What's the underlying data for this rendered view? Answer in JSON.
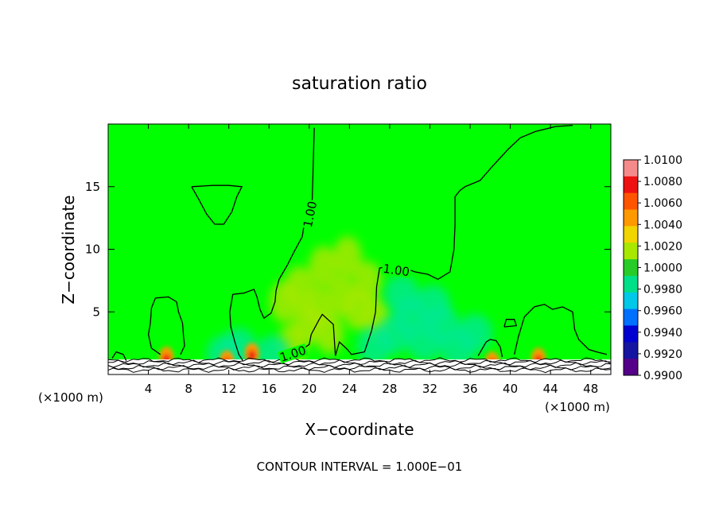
{
  "chart_data": {
    "type": "heatmap",
    "title": "saturation ratio",
    "xlabel": "X−coordinate",
    "ylabel": "Z−coordinate",
    "x_unit_left": "(×1000 m)",
    "x_unit_right": "(×1000 m)",
    "footer": "CONTOUR INTERVAL = 1.000E−01",
    "xlim": [
      0,
      50
    ],
    "ylim": [
      0,
      20
    ],
    "x_ticks": [
      4,
      8,
      12,
      16,
      20,
      24,
      28,
      32,
      36,
      40,
      44,
      48
    ],
    "y_ticks": [
      5,
      10,
      15
    ],
    "contour_labels": [
      "1.00",
      "1.00",
      "1.00"
    ],
    "colorbar": {
      "labels": [
        "1.0100",
        "1.0080",
        "1.0060",
        "1.0040",
        "1.0020",
        "1.0000",
        "0.9980",
        "0.9960",
        "0.9940",
        "0.9920",
        "0.9900"
      ],
      "colors": [
        "#f58a8a",
        "#ee1111",
        "#ff5500",
        "#ff9900",
        "#f2d400",
        "#a8e800",
        "#28cc28",
        "#00e088",
        "#00c8e8",
        "#0070ff",
        "#0000d0",
        "#1414a0",
        "#550088"
      ]
    },
    "background_color": "#00ff00",
    "warm_cells": [
      [
        18.3,
        2.4
      ],
      [
        19.8,
        4.0
      ],
      [
        20.8,
        5.4
      ],
      [
        22.0,
        3.3
      ],
      [
        23.2,
        6.3
      ],
      [
        24.8,
        5.2
      ],
      [
        25.8,
        7.4
      ],
      [
        26.6,
        4.5
      ],
      [
        21.4,
        8.6
      ],
      [
        17.5,
        5.8
      ],
      [
        19.0,
        7.0
      ],
      [
        23.8,
        9.4
      ]
    ],
    "cool_cells": [
      [
        28.5,
        3.2
      ],
      [
        30.0,
        4.6
      ],
      [
        31.5,
        2.6
      ],
      [
        33.2,
        4.0
      ],
      [
        34.8,
        2.1
      ],
      [
        36.5,
        3.3
      ],
      [
        29.2,
        6.4
      ],
      [
        32.3,
        5.6
      ],
      [
        26.5,
        2.3
      ],
      [
        11.5,
        1.6
      ],
      [
        13.0,
        2.2
      ],
      [
        16.4,
        1.6
      ]
    ],
    "hot_spots": [
      [
        5.8,
        1.4
      ],
      [
        14.3,
        1.7
      ],
      [
        42.8,
        1.3
      ],
      [
        11.8,
        1.1
      ],
      [
        38.2,
        1.0
      ]
    ],
    "contours": [
      {
        "name": "contour-upper-right",
        "points": [
          [
            46.2,
            19.9
          ],
          [
            44.5,
            19.8
          ],
          [
            42.5,
            19.4
          ],
          [
            41.0,
            18.9
          ],
          [
            39.8,
            18.0
          ],
          [
            38.2,
            16.6
          ],
          [
            37.0,
            15.5
          ],
          [
            35.5,
            15.0
          ],
          [
            35.0,
            14.7
          ],
          [
            34.5,
            14.2
          ],
          [
            34.5,
            12.0
          ],
          [
            34.4,
            10.0
          ],
          [
            34.0,
            8.2
          ],
          [
            32.8,
            7.6
          ],
          [
            31.8,
            8.0
          ],
          [
            30.5,
            8.2
          ],
          [
            29.5,
            8.5
          ],
          [
            28.3,
            8.7
          ],
          [
            27.0,
            8.5
          ],
          [
            26.7,
            7.0
          ],
          [
            26.6,
            5.0
          ],
          [
            26.2,
            3.5
          ],
          [
            25.5,
            1.8
          ],
          [
            24.2,
            1.6
          ],
          [
            23.8,
            2.0
          ],
          [
            23.0,
            2.6
          ],
          [
            22.6,
            1.5
          ],
          [
            22.4,
            4.0
          ],
          [
            21.3,
            4.8
          ],
          [
            21.0,
            4.4
          ],
          [
            20.2,
            3.2
          ],
          [
            20.0,
            2.4
          ],
          [
            19.3,
            2.0
          ],
          [
            18.2,
            2.0
          ],
          [
            17.5,
            1.8
          ],
          [
            17.2,
            1.4
          ]
        ]
      },
      {
        "name": "contour-center-line",
        "points": [
          [
            20.5,
            19.7
          ],
          [
            20.4,
            17.0
          ],
          [
            20.3,
            14.0
          ],
          [
            19.6,
            12.5
          ],
          [
            19.3,
            11.0
          ],
          [
            18.5,
            9.8
          ],
          [
            17.8,
            8.7
          ],
          [
            17.0,
            7.6
          ],
          [
            16.7,
            6.7
          ],
          [
            16.6,
            5.8
          ],
          [
            16.2,
            4.9
          ],
          [
            15.5,
            4.5
          ],
          [
            15.1,
            5.2
          ],
          [
            14.8,
            6.2
          ],
          [
            14.5,
            6.8
          ],
          [
            13.5,
            6.5
          ],
          [
            12.4,
            6.4
          ],
          [
            12.1,
            5.0
          ],
          [
            12.2,
            3.8
          ],
          [
            12.6,
            2.6
          ],
          [
            13.0,
            1.6
          ],
          [
            13.4,
            1.1
          ]
        ]
      },
      {
        "name": "contour-upper-bowl",
        "points": [
          [
            8.3,
            15.0
          ],
          [
            9.0,
            14.0
          ],
          [
            9.8,
            12.8
          ],
          [
            10.6,
            12.0
          ],
          [
            11.5,
            12.0
          ],
          [
            12.3,
            13.0
          ],
          [
            12.8,
            14.2
          ],
          [
            13.3,
            15.0
          ],
          [
            12.0,
            15.1
          ],
          [
            10.4,
            15.1
          ],
          [
            8.3,
            15.0
          ]
        ]
      },
      {
        "name": "contour-left-plume",
        "points": [
          [
            5.2,
            1.6
          ],
          [
            4.3,
            2.1
          ],
          [
            4.0,
            3.2
          ],
          [
            4.2,
            4.1
          ],
          [
            4.3,
            5.3
          ],
          [
            4.7,
            6.1
          ],
          [
            6.0,
            6.2
          ],
          [
            6.8,
            5.8
          ],
          [
            7.0,
            5.0
          ],
          [
            7.4,
            4.1
          ],
          [
            7.5,
            3.0
          ],
          [
            7.6,
            2.3
          ],
          [
            7.2,
            1.6
          ]
        ]
      },
      {
        "name": "contour-left-edge",
        "points": [
          [
            0.4,
            1.3
          ],
          [
            0.8,
            1.8
          ],
          [
            1.5,
            1.6
          ],
          [
            1.8,
            1.1
          ]
        ]
      },
      {
        "name": "contour-right-blob-a",
        "points": [
          [
            36.8,
            1.5
          ],
          [
            37.6,
            2.6
          ],
          [
            38.0,
            2.8
          ],
          [
            38.6,
            2.7
          ],
          [
            39.0,
            2.2
          ],
          [
            39.2,
            1.4
          ]
        ]
      },
      {
        "name": "contour-right-blob-b",
        "points": [
          [
            40.4,
            1.6
          ],
          [
            40.8,
            3.0
          ],
          [
            41.4,
            4.6
          ],
          [
            42.4,
            5.4
          ],
          [
            43.4,
            5.6
          ],
          [
            44.2,
            5.2
          ],
          [
            45.2,
            5.4
          ],
          [
            46.2,
            5.0
          ],
          [
            46.4,
            3.6
          ],
          [
            46.8,
            2.8
          ],
          [
            47.8,
            2.0
          ],
          [
            48.6,
            1.8
          ],
          [
            49.6,
            1.6
          ]
        ]
      },
      {
        "name": "contour-right-island",
        "points": [
          [
            39.4,
            3.8
          ],
          [
            39.6,
            4.4
          ],
          [
            40.4,
            4.4
          ],
          [
            40.6,
            3.9
          ],
          [
            39.4,
            3.8
          ]
        ]
      }
    ],
    "ground_lines": [
      0.35,
      0.55,
      0.75,
      0.95,
      1.15
    ]
  }
}
